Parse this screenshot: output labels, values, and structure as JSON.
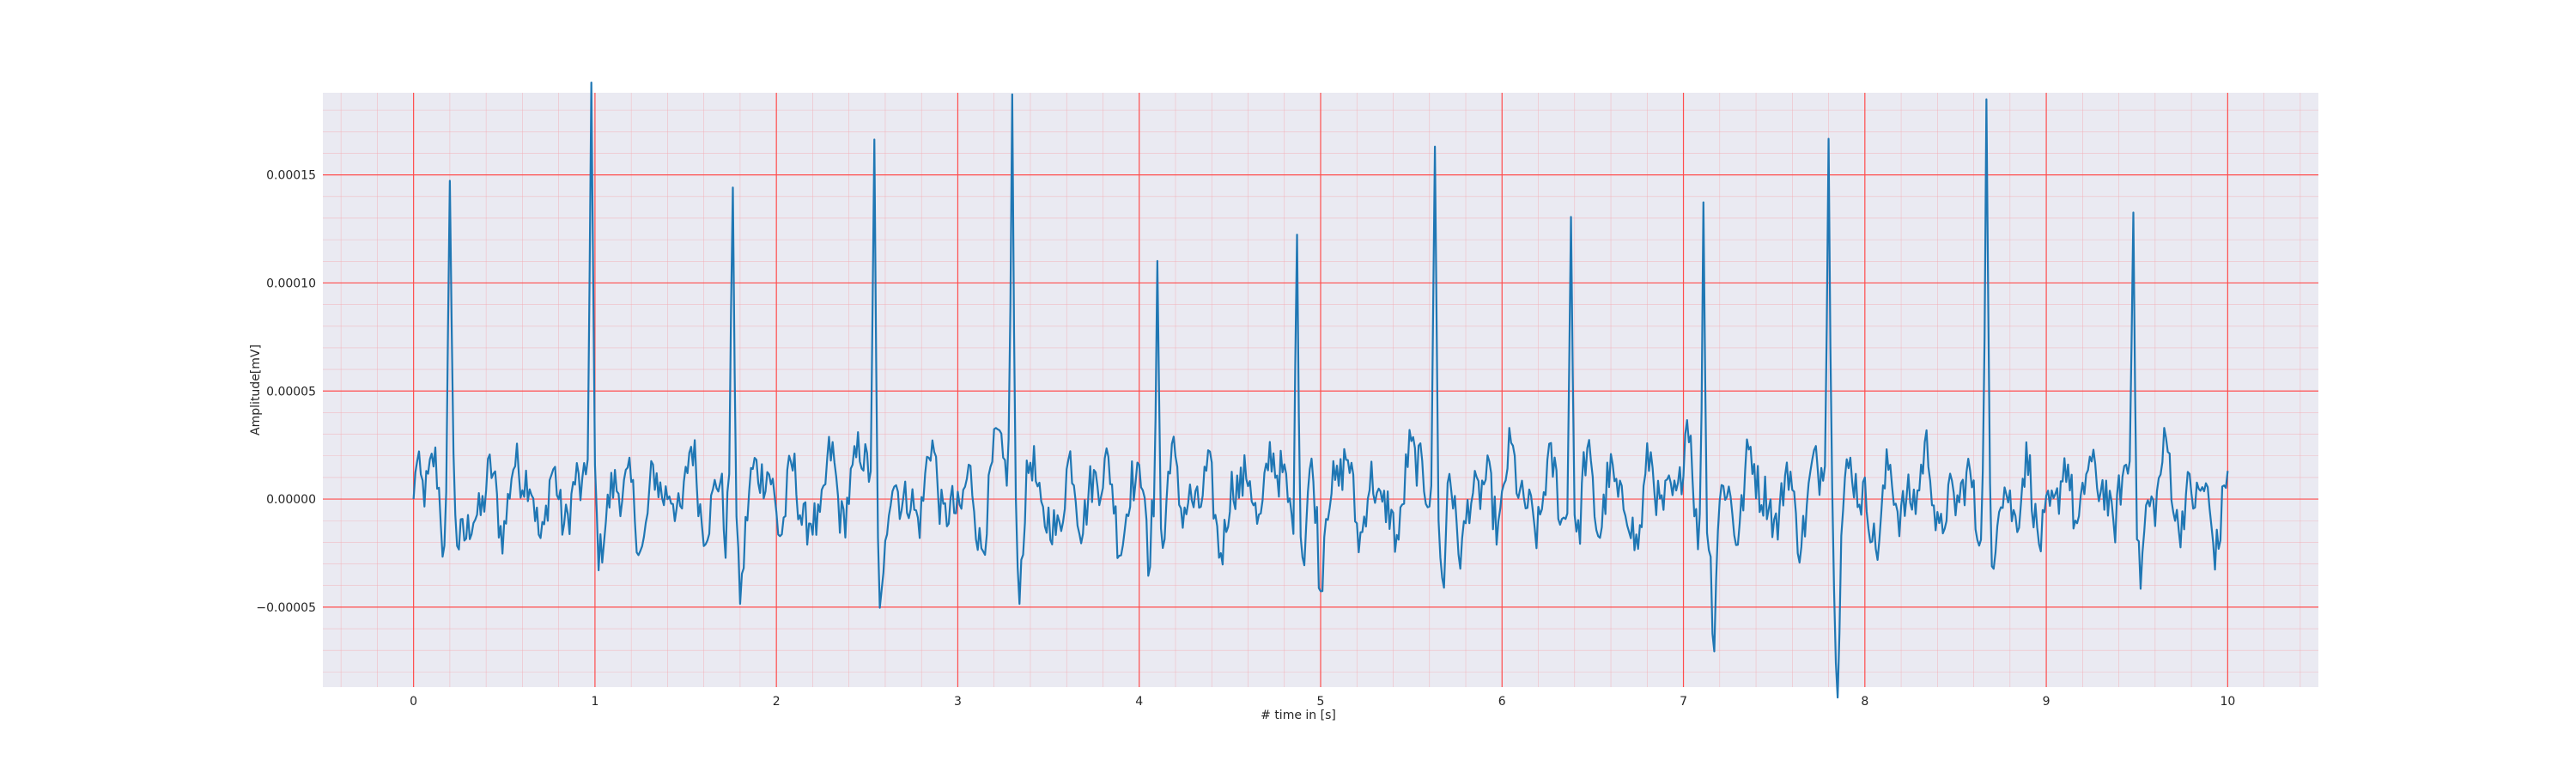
{
  "chart_data": {
    "type": "line",
    "title": "",
    "xlabel": "# time in [s]",
    "ylabel": "Amplitude[mV]",
    "xlim": [
      -0.5,
      10.5
    ],
    "ylim": [
      -8.7e-05,
      0.000188
    ],
    "x_ticks": [
      0,
      1,
      2,
      3,
      4,
      5,
      6,
      7,
      8,
      9,
      10
    ],
    "x_tick_labels": [
      "0",
      "1",
      "2",
      "3",
      "4",
      "5",
      "6",
      "7",
      "8",
      "9",
      "10"
    ],
    "y_ticks": [
      -5e-05,
      0.0,
      5e-05,
      0.0001,
      0.00015
    ],
    "y_tick_labels": [
      "−0.00005",
      "0.00000",
      "0.00005",
      "0.00010",
      "0.00015"
    ],
    "grid": true,
    "minor_grid": true,
    "background_color": "#eaeaf2",
    "major_grid_color": "#ff4d4d",
    "minor_grid_color": "#f4a9b0",
    "line_color": "#1f77b4",
    "series": [
      {
        "name": "",
        "x_start": 0,
        "x_end": 10,
        "points_per_second": 100,
        "approximate_shape": true,
        "r_peaks": [
          {
            "t": 0.2,
            "amp": 0.000138
          },
          {
            "t": 0.98,
            "amp": 0.000165
          },
          {
            "t": 1.76,
            "amp": 0.000143
          },
          {
            "t": 2.54,
            "amp": 0.000165
          },
          {
            "t": 3.3,
            "amp": 0.000178
          },
          {
            "t": 4.1,
            "amp": 0.000128
          },
          {
            "t": 4.87,
            "amp": 0.000147
          },
          {
            "t": 5.63,
            "amp": 0.000168
          },
          {
            "t": 6.38,
            "amp": 0.00013
          },
          {
            "t": 7.11,
            "amp": 0.000153
          },
          {
            "t": 7.8,
            "amp": 0.000151
          },
          {
            "t": 8.67,
            "amp": 0.000165
          },
          {
            "t": 9.48,
            "amp": 0.00014
          }
        ],
        "troughs": [
          {
            "t": 0.17,
            "amp": -4.8e-05
          },
          {
            "t": 1.72,
            "amp": -4.5e-05
          },
          {
            "t": 4.05,
            "amp": -6.6e-05
          },
          {
            "t": 5.0,
            "amp": -5e-05
          },
          {
            "t": 5.68,
            "amp": -5.5e-05
          },
          {
            "t": 7.17,
            "amp": -7.4e-05
          },
          {
            "t": 7.85,
            "amp": -6.9e-05
          },
          {
            "t": 8.7,
            "amp": -5.2e-05
          }
        ]
      }
    ]
  }
}
